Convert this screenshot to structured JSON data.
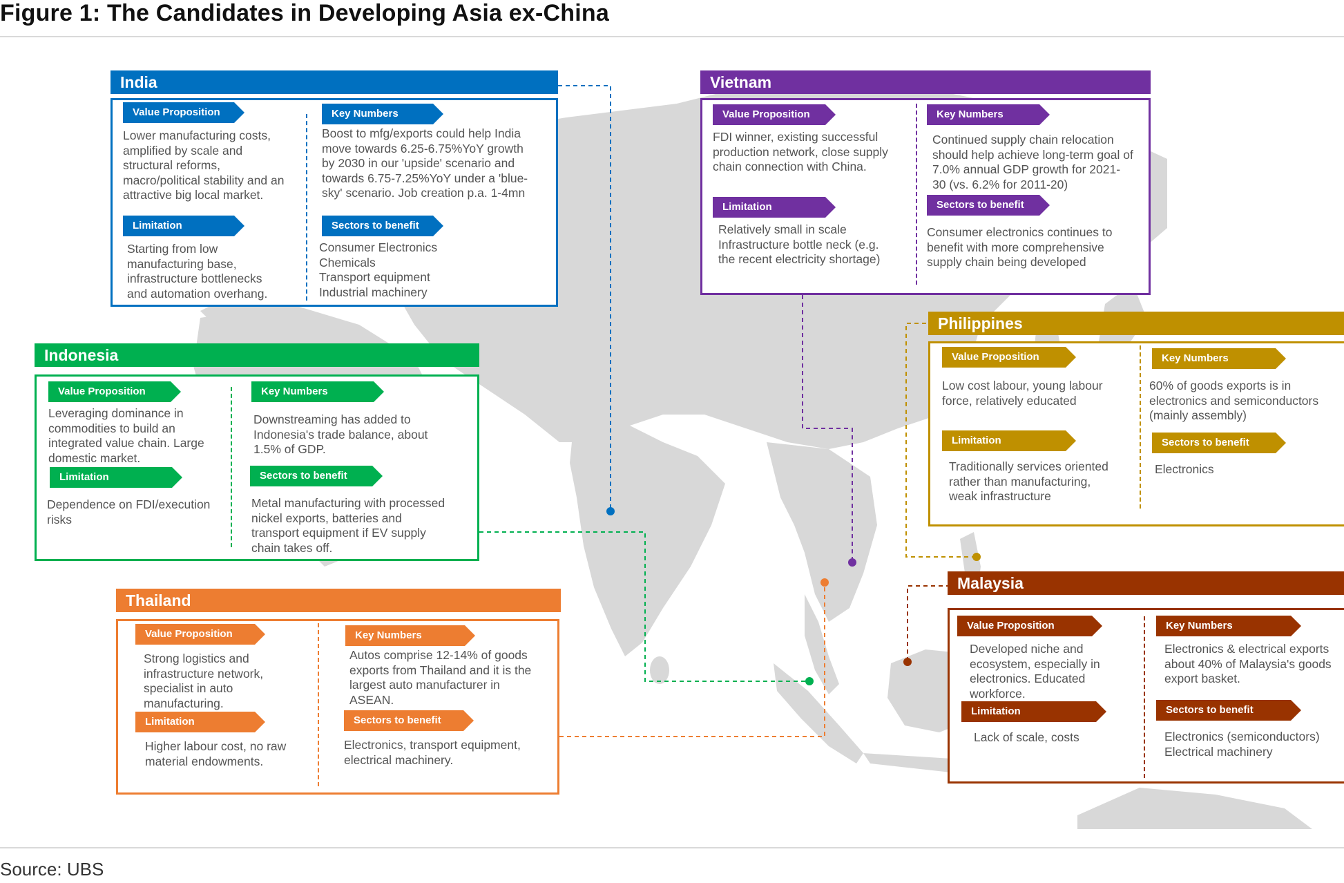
{
  "title": "Figure 1: The Candidates in Developing Asia ex-China",
  "source": "Source: UBS",
  "colors": {
    "india": "#0070c0",
    "vietnam": "#7030a0",
    "indonesia": "#00b050",
    "philippines": "#bf9000",
    "thailand": "#ed7d31",
    "malaysia": "#993300",
    "map_land": "#d8d8d8"
  },
  "tag_labels": {
    "value": "Value Proposition",
    "key": "Key Numbers",
    "limitation": "Limitation",
    "sectors": "Sectors to benefit"
  },
  "india": {
    "name": "India",
    "value": "Lower manufacturing costs,\namplified by scale and\nstructural reforms,\nmacro/political stability and an\nattractive big local market.",
    "key": "Boost to mfg/exports could help India\nmove towards 6.25-6.75%YoY growth\nby 2030 in our 'upside' scenario and\ntowards 6.75-7.25%YoY under a 'blue-\nsky' scenario. Job creation p.a. 1-4mn",
    "limitation": "Starting from low\nmanufacturing base,\ninfrastructure bottlenecks\nand automation overhang.",
    "sectors": "Consumer Electronics\nChemicals\nTransport equipment\nIndustrial machinery"
  },
  "vietnam": {
    "name": "Vietnam",
    "value": "FDI winner, existing successful\nproduction network, close supply\nchain connection with China.",
    "key": "Continued supply chain relocation\nshould help achieve long-term goal of\n7.0% annual GDP growth for 2021-\n30 (vs. 6.2% for 2011-20)",
    "limitation": "Relatively small in scale\nInfrastructure bottle neck (e.g.\nthe recent electricity shortage)",
    "sectors": "Consumer electronics continues to\nbenefit with more comprehensive\nsupply chain being developed"
  },
  "indonesia": {
    "name": "Indonesia",
    "value": "Leveraging dominance in\ncommodities to build an\nintegrated value chain. Large\ndomestic market.",
    "key": "Downstreaming has added to\nIndonesia's trade balance, about\n1.5% of GDP.",
    "limitation": "Dependence on FDI/execution\nrisks",
    "sectors": "Metal manufacturing with processed\nnickel exports, batteries and\ntransport equipment if EV supply\nchain takes off."
  },
  "philippines": {
    "name": "Philippines",
    "value": "Low cost labour, young labour\nforce, relatively educated",
    "key": "60% of goods exports is in\nelectronics and semiconductors\n(mainly assembly)",
    "limitation": "Traditionally services oriented\nrather than manufacturing,\nweak infrastructure",
    "sectors": "Electronics"
  },
  "thailand": {
    "name": "Thailand",
    "value": "Strong logistics and\ninfrastructure network,\nspecialist in auto\nmanufacturing.",
    "key": "Autos comprise 12-14% of goods\nexports from Thailand and it is the\nlargest auto manufacturer in\nASEAN.",
    "limitation": "Higher labour cost, no raw\nmaterial endowments.",
    "sectors": "Electronics, transport equipment,\nelectrical machinery."
  },
  "malaysia": {
    "name": "Malaysia",
    "value": "Developed niche and\necosystem, especially in\nelectronics. Educated\nworkforce.",
    "key": "Electronics & electrical exports\nabout 40% of Malaysia's goods\nexport basket.",
    "limitation": "Lack of scale, costs",
    "sectors": "Electronics (semiconductors)\nElectrical machinery"
  }
}
